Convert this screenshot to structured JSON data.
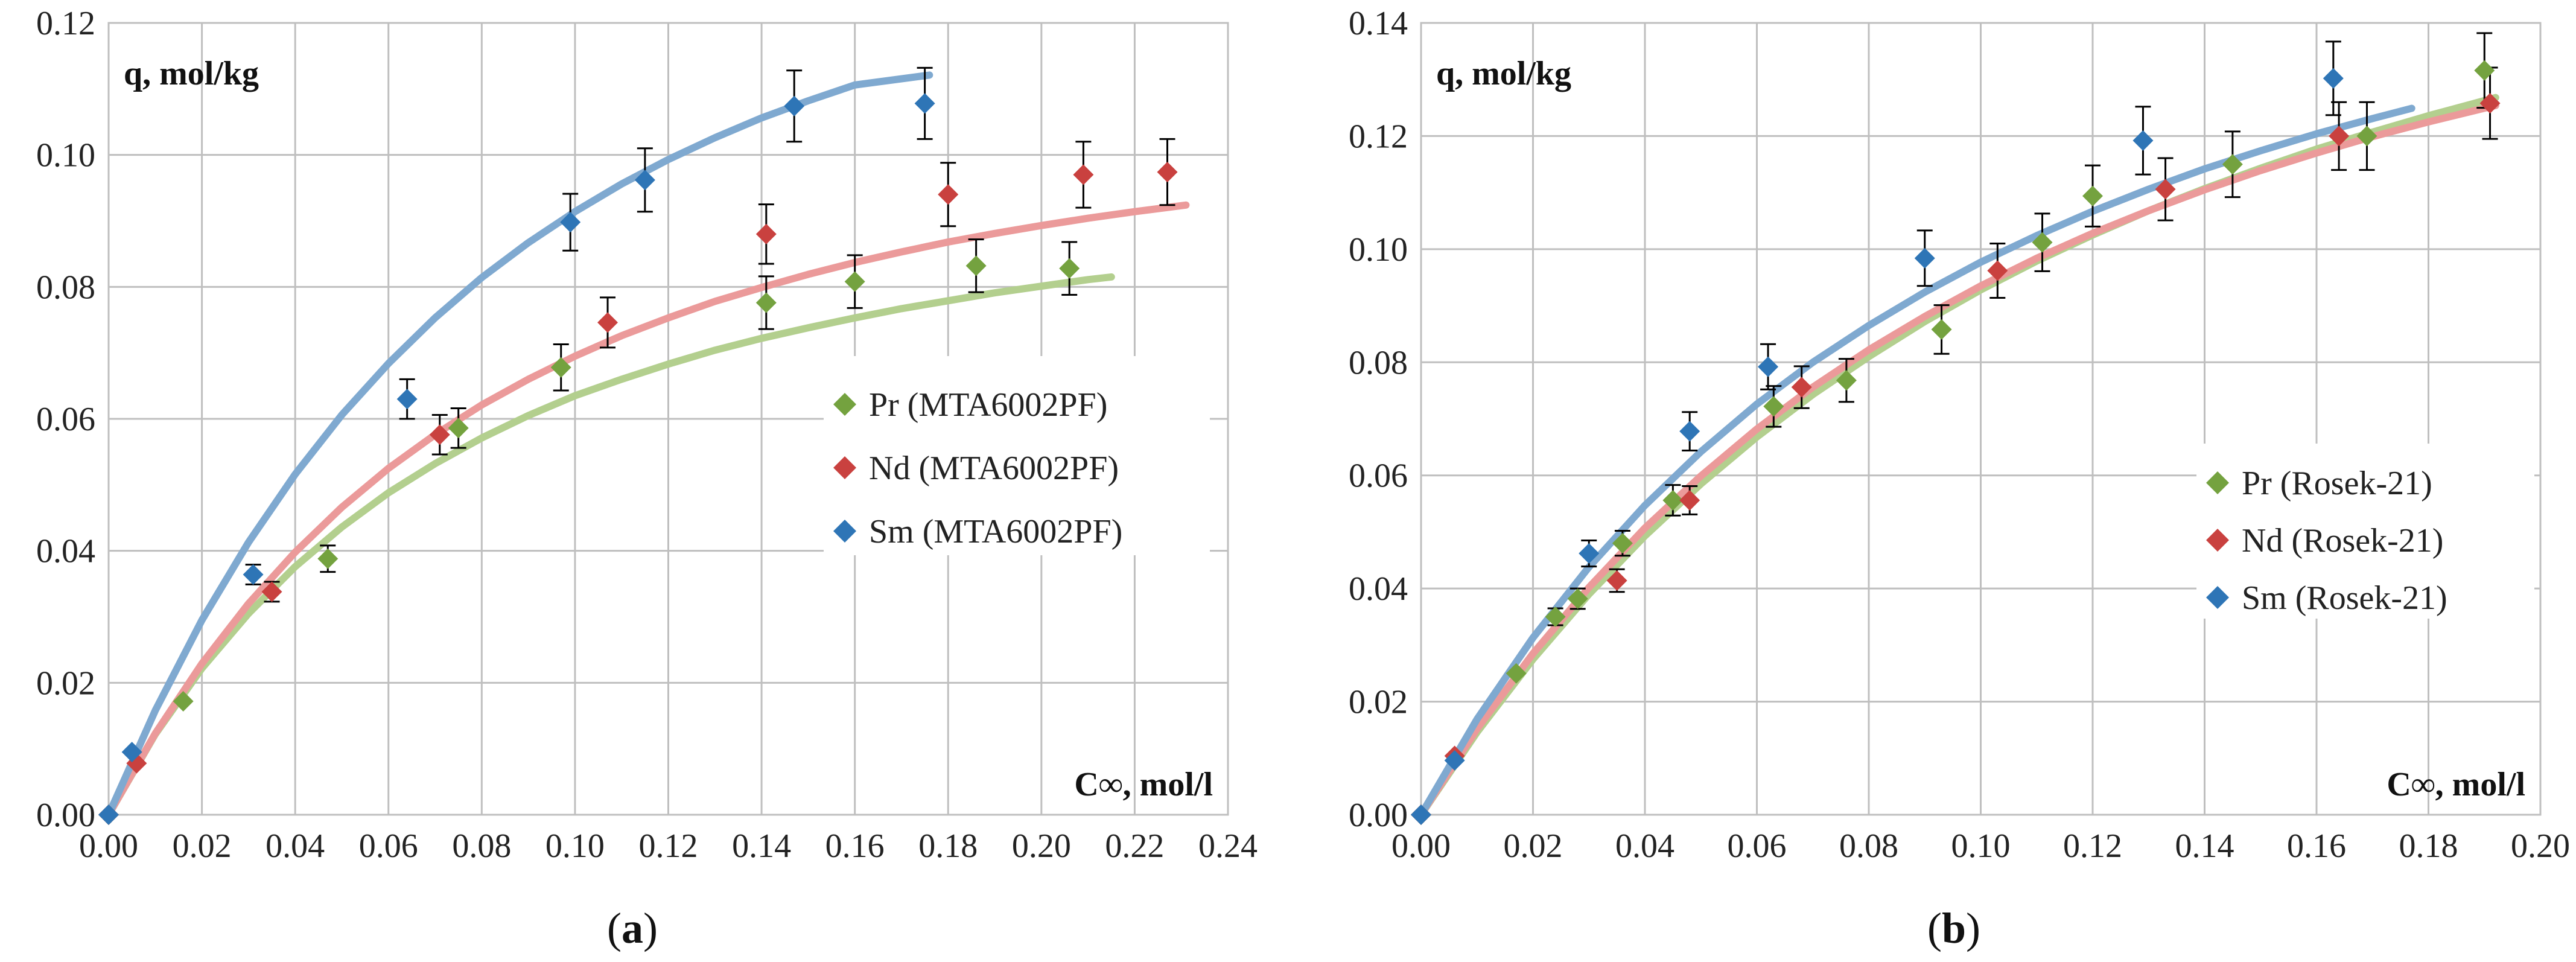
{
  "chart_data": [
    {
      "type": "scatter",
      "panel_label": "(a)",
      "panel_letter": "a",
      "xlabel": "C∞, mol/l",
      "ylabel": "q, mol/kg",
      "xlim": [
        0,
        0.24
      ],
      "ylim": [
        0,
        0.12
      ],
      "x_ticks": [
        "0.00",
        "0.02",
        "0.04",
        "0.06",
        "0.08",
        "0.10",
        "0.12",
        "0.14",
        "0.16",
        "0.18",
        "0.20",
        "0.22",
        "0.24"
      ],
      "y_ticks": [
        "0.00",
        "0.02",
        "0.04",
        "0.06",
        "0.08",
        "0.10",
        "0.12"
      ],
      "grid": true,
      "legend_position": "right-middle",
      "series": [
        {
          "name": "Pr  (MTA6002PF)",
          "color": "#74a23f",
          "curve_color": "#b3cf8e",
          "x": [
            0.0,
            0.016,
            0.047,
            0.075,
            0.097,
            0.141,
            0.16,
            0.186,
            0.206
          ],
          "y": [
            0.0,
            0.0172,
            0.0388,
            0.0586,
            0.0678,
            0.0776,
            0.0808,
            0.0832,
            0.0828
          ],
          "err": [
            0.0,
            0.0,
            0.002,
            0.003,
            0.0035,
            0.004,
            0.004,
            0.004,
            0.004
          ],
          "curve_x": [
            0.0,
            0.01,
            0.02,
            0.03,
            0.04,
            0.05,
            0.06,
            0.07,
            0.08,
            0.09,
            0.1,
            0.11,
            0.12,
            0.13,
            0.14,
            0.15,
            0.16,
            0.17,
            0.18,
            0.19,
            0.2,
            0.21,
            0.215
          ],
          "curve_y": [
            0.0,
            0.0122,
            0.0222,
            0.0305,
            0.0376,
            0.0436,
            0.0488,
            0.0532,
            0.0571,
            0.0605,
            0.0635,
            0.066,
            0.0683,
            0.0704,
            0.0722,
            0.0738,
            0.0753,
            0.0767,
            0.0779,
            0.0791,
            0.0801,
            0.0811,
            0.0815
          ]
        },
        {
          "name": "Nd  (MTA6002PF)",
          "color": "#c9413f",
          "curve_color": "#eb9a9a",
          "x": [
            0.0,
            0.006,
            0.035,
            0.071,
            0.107,
            0.141,
            0.18,
            0.209,
            0.227
          ],
          "y": [
            0.0,
            0.0078,
            0.0338,
            0.0576,
            0.0746,
            0.088,
            0.094,
            0.097,
            0.0974
          ],
          "err": [
            0.0,
            0.0,
            0.0015,
            0.003,
            0.0038,
            0.0045,
            0.0048,
            0.005,
            0.005
          ],
          "curve_x": [
            0.0,
            0.01,
            0.02,
            0.03,
            0.04,
            0.05,
            0.06,
            0.07,
            0.08,
            0.09,
            0.1,
            0.11,
            0.12,
            0.13,
            0.14,
            0.15,
            0.16,
            0.17,
            0.18,
            0.19,
            0.2,
            0.21,
            0.22,
            0.231
          ],
          "curve_y": [
            0.0,
            0.0123,
            0.0229,
            0.032,
            0.0398,
            0.0466,
            0.0525,
            0.0576,
            0.0621,
            0.066,
            0.0695,
            0.0726,
            0.0753,
            0.0778,
            0.0799,
            0.0819,
            0.0837,
            0.0853,
            0.0868,
            0.0881,
            0.0893,
            0.0904,
            0.0914,
            0.0924
          ]
        },
        {
          "name": "Sm  (MTA6002PF)",
          "color": "#2e75b6",
          "curve_color": "#7fa9d0",
          "x": [
            0.0,
            0.005,
            0.031,
            0.064,
            0.099,
            0.115,
            0.147,
            0.175
          ],
          "y": [
            0.0,
            0.0095,
            0.0364,
            0.063,
            0.0898,
            0.0962,
            0.1074,
            0.1078
          ],
          "err": [
            0.0,
            0.0,
            0.0015,
            0.003,
            0.0043,
            0.0048,
            0.0054,
            0.0054
          ],
          "curve_x": [
            0.0,
            0.01,
            0.02,
            0.03,
            0.04,
            0.05,
            0.06,
            0.07,
            0.08,
            0.09,
            0.1,
            0.11,
            0.12,
            0.13,
            0.14,
            0.15,
            0.16,
            0.176
          ],
          "curve_y": [
            0.0,
            0.0158,
            0.0295,
            0.0413,
            0.0516,
            0.0606,
            0.0684,
            0.0753,
            0.0814,
            0.0867,
            0.0914,
            0.0956,
            0.0993,
            0.1026,
            0.1056,
            0.1082,
            0.1106,
            0.1121
          ]
        }
      ]
    },
    {
      "type": "scatter",
      "panel_label": "(b)",
      "panel_letter": "b",
      "xlabel": "C∞, mol/l",
      "ylabel": "q, mol/kg",
      "xlim": [
        0,
        0.2
      ],
      "ylim": [
        0,
        0.14
      ],
      "x_ticks": [
        "0.00",
        "0.02",
        "0.04",
        "0.06",
        "0.08",
        "0.10",
        "0.12",
        "0.14",
        "0.16",
        "0.18",
        "0.20"
      ],
      "y_ticks": [
        "0.00",
        "0.02",
        "0.04",
        "0.06",
        "0.08",
        "0.10",
        "0.12",
        "0.14"
      ],
      "grid": true,
      "legend_position": "right-middle",
      "series": [
        {
          "name": "Pr (Rosek-21)",
          "color": "#74a23f",
          "curve_color": "#b3cf8e",
          "x": [
            0.0,
            0.017,
            0.024,
            0.028,
            0.036,
            0.045,
            0.063,
            0.076,
            0.093,
            0.111,
            0.12,
            0.145,
            0.169,
            0.19
          ],
          "y": [
            0.0,
            0.025,
            0.035,
            0.0382,
            0.048,
            0.0556,
            0.0722,
            0.0768,
            0.0858,
            0.1012,
            0.1094,
            0.115,
            0.12,
            0.1316
          ],
          "err": [
            0.0,
            0.0,
            0.0015,
            0.0018,
            0.0022,
            0.0027,
            0.0036,
            0.0038,
            0.0043,
            0.0051,
            0.0054,
            0.0058,
            0.006,
            0.0066
          ],
          "curve_x": [
            0.0,
            0.01,
            0.02,
            0.03,
            0.04,
            0.05,
            0.06,
            0.07,
            0.08,
            0.09,
            0.1,
            0.11,
            0.12,
            0.13,
            0.14,
            0.15,
            0.16,
            0.17,
            0.18,
            0.192
          ],
          "curve_y": [
            0.0,
            0.0146,
            0.0275,
            0.039,
            0.0493,
            0.0585,
            0.0668,
            0.0743,
            0.081,
            0.0872,
            0.0928,
            0.0979,
            0.1025,
            0.1068,
            0.1107,
            0.1143,
            0.1177,
            0.1207,
            0.1236,
            0.1268
          ]
        },
        {
          "name": "Nd (Rosek-21)",
          "color": "#c9413f",
          "curve_color": "#eb9a9a",
          "x": [
            0.0,
            0.006,
            0.035,
            0.048,
            0.068,
            0.103,
            0.133,
            0.164,
            0.191
          ],
          "y": [
            0.0,
            0.0104,
            0.0414,
            0.0556,
            0.0756,
            0.0962,
            0.1106,
            0.12,
            0.1258
          ],
          "err": [
            0.0,
            0.0,
            0.002,
            0.0025,
            0.0037,
            0.0048,
            0.0055,
            0.006,
            0.0063
          ],
          "curve_x": [
            0.0,
            0.01,
            0.02,
            0.03,
            0.04,
            0.05,
            0.06,
            0.07,
            0.08,
            0.09,
            0.1,
            0.11,
            0.12,
            0.13,
            0.14,
            0.15,
            0.16,
            0.17,
            0.18,
            0.192
          ],
          "curve_y": [
            0.0,
            0.0152,
            0.0285,
            0.0402,
            0.0507,
            0.0599,
            0.0682,
            0.0756,
            0.0822,
            0.0881,
            0.0935,
            0.0984,
            0.1028,
            0.1068,
            0.1105,
            0.1139,
            0.117,
            0.1199,
            0.1225,
            0.1254
          ]
        },
        {
          "name": "Sm (Rosek-21)",
          "color": "#2e75b6",
          "curve_color": "#7fa9d0",
          "x": [
            0.0,
            0.006,
            0.03,
            0.048,
            0.062,
            0.09,
            0.129,
            0.163
          ],
          "y": [
            0.0,
            0.0096,
            0.0462,
            0.0678,
            0.0792,
            0.0984,
            0.1192,
            0.1302
          ],
          "err": [
            0.0,
            0.0,
            0.0023,
            0.0034,
            0.004,
            0.0049,
            0.006,
            0.0065
          ],
          "curve_x": [
            0.0,
            0.01,
            0.02,
            0.03,
            0.04,
            0.05,
            0.06,
            0.07,
            0.08,
            0.09,
            0.1,
            0.11,
            0.12,
            0.13,
            0.14,
            0.15,
            0.16,
            0.17,
            0.177
          ],
          "curve_y": [
            0.0,
            0.0169,
            0.0313,
            0.0438,
            0.0547,
            0.0642,
            0.0726,
            0.08,
            0.0865,
            0.0924,
            0.0977,
            0.1024,
            0.1067,
            0.1106,
            0.1142,
            0.1174,
            0.1204,
            0.1231,
            0.1249
          ]
        }
      ]
    }
  ]
}
